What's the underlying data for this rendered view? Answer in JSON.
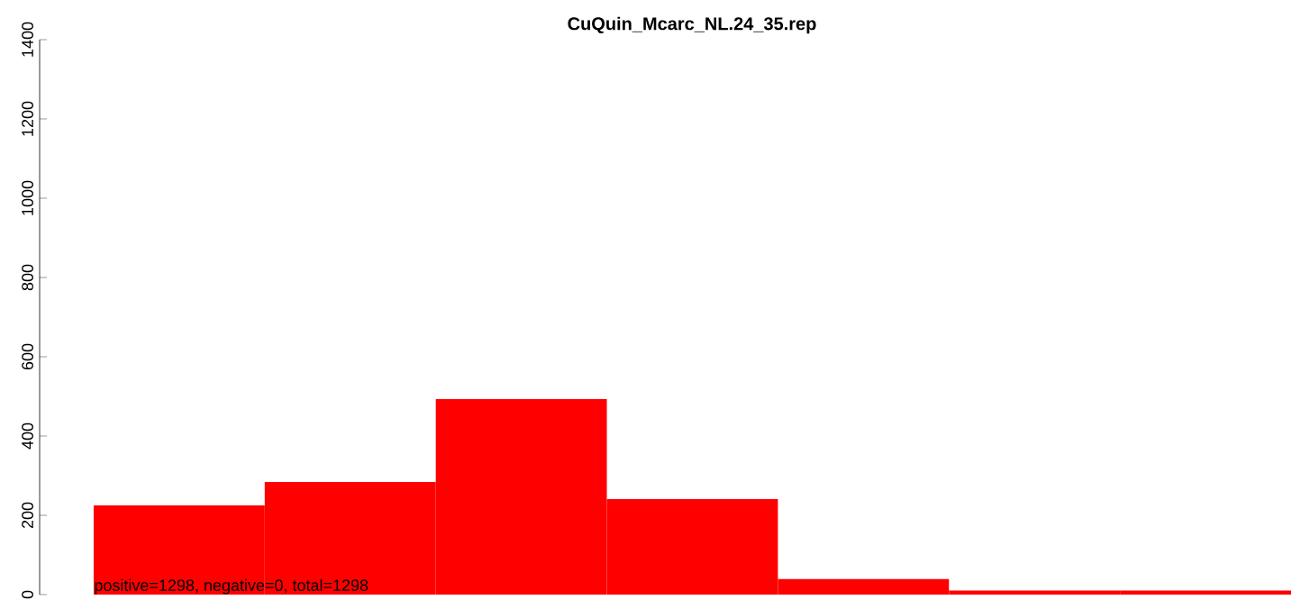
{
  "chart_data": {
    "type": "bar",
    "title": "CuQuin_Mcarc_NL.24_35.rep",
    "categories": [
      null,
      null,
      null,
      null,
      null,
      null,
      null
    ],
    "values": [
      225,
      284,
      493,
      241,
      39,
      10,
      10
    ],
    "color": "#ff0000",
    "ylim": [
      0,
      1400
    ],
    "yticks": [
      0,
      200,
      400,
      600,
      800,
      1000,
      1200,
      1400
    ],
    "annotations": [
      "positive=1298, negative=0, total=1298"
    ]
  }
}
